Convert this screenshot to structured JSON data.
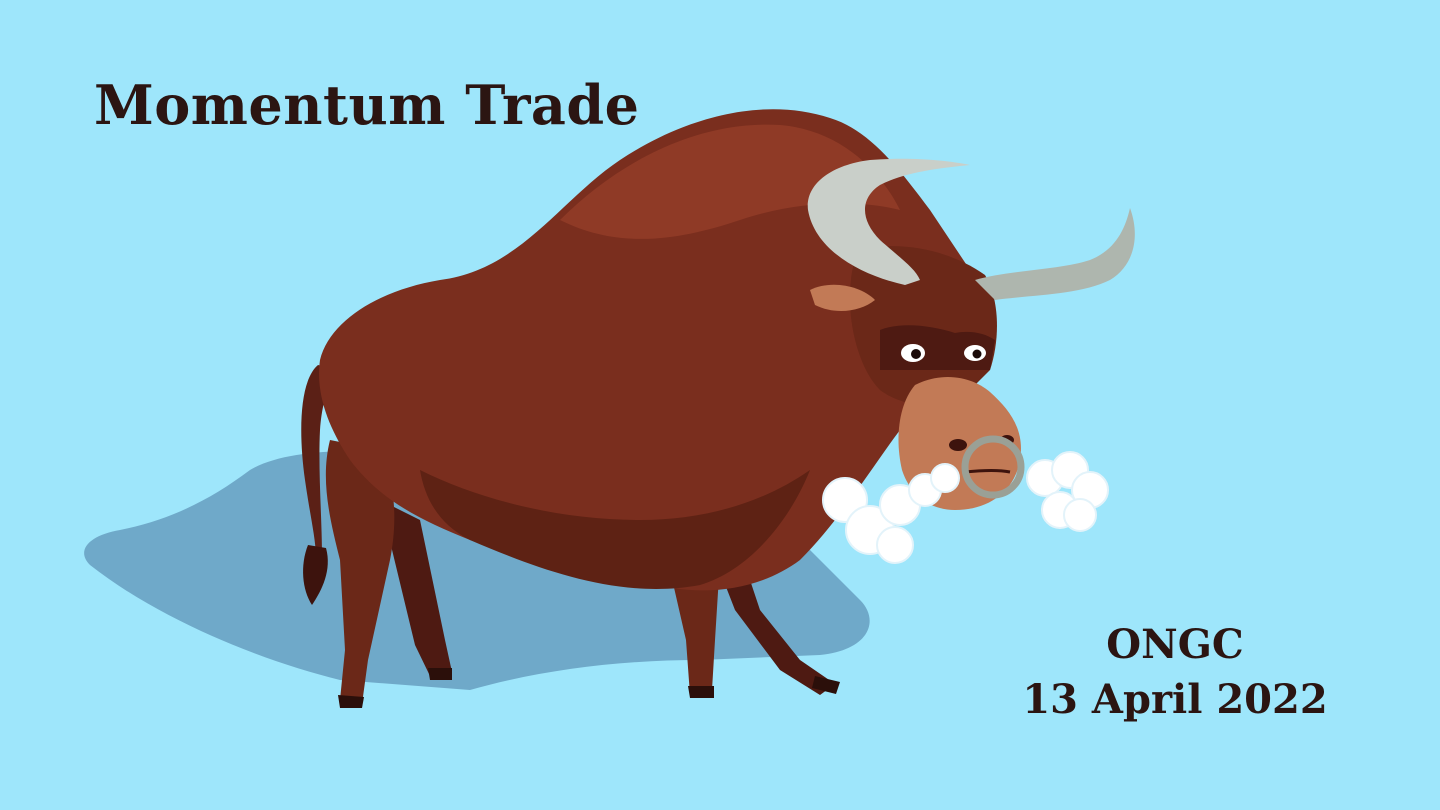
{
  "heading": "Momentum Trade",
  "stock": {
    "ticker": "ONGC",
    "date": "13 April 2022"
  },
  "illustration": {
    "subject": "bull-icon",
    "colors": {
      "background": "#9ee6fb",
      "shadow": "#6fa9c9",
      "body": "#7a2e1e",
      "body_dark": "#4e1a12",
      "body_light": "#8f3a26",
      "horn": "#c9cfc9",
      "muzzle": "#c27a56",
      "ring": "#9aa096",
      "breath": "#ffffff",
      "text": "#2b1512"
    }
  }
}
